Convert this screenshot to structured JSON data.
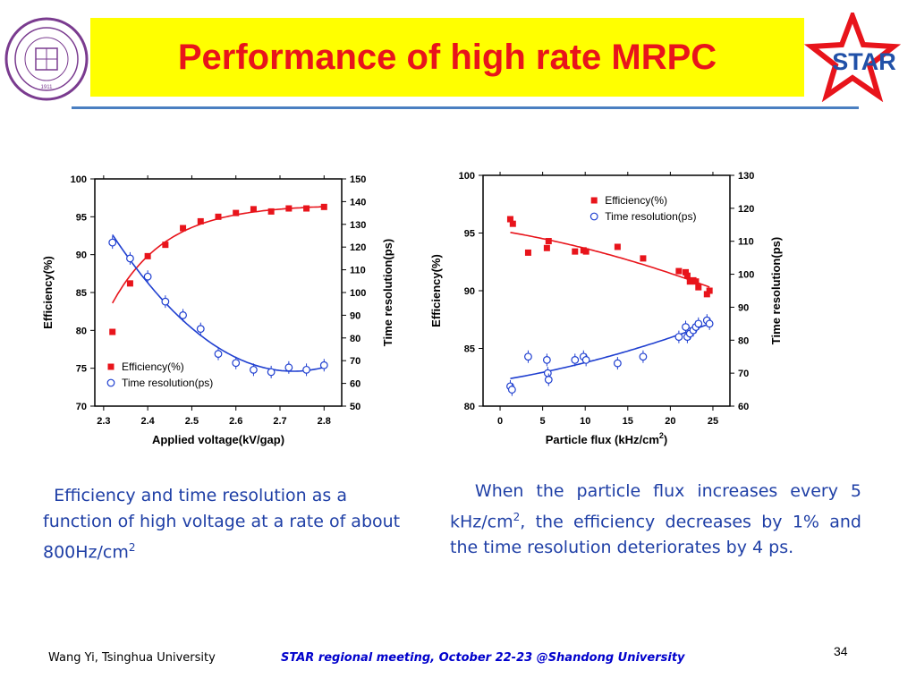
{
  "slide": {
    "title": "Performance of high rate MRPC",
    "star_logo_text": "STAR",
    "tsinghua_logo_text": "TSINGHUA UNIVERSITY",
    "tsinghua_logo_year": "1911",
    "caption_left_main": "Efficiency and time resolution as a function of high voltage at a rate of about 800Hz/cm",
    "caption_left_sup": "2",
    "caption_right_pre": "When the particle flux increases every 5 kHz/cm",
    "caption_right_sup": "2",
    "caption_right_post": ", the efficiency decreases by 1% and the time resolution deteriorates by 4 ps.",
    "footer_left": "Wang Yi, Tsinghua University",
    "footer_center": "STAR regional meeting, October 22-23 @Shandong University",
    "page_number": "34",
    "colors": {
      "title": "#e8141b",
      "title_bg": "#ffff00",
      "rule": "#4a7fc1",
      "caption": "#1f3fa6",
      "efficiency": "#e8141b",
      "resolution": "#1f3fd0"
    }
  },
  "chart_data": [
    {
      "type": "scatter",
      "xlabel": "Applied voltage(kV/gap)",
      "ylabel": "Efficiency(%)",
      "y2label": "Time resolution(ps)",
      "xlim": [
        2.28,
        2.84
      ],
      "ylim": [
        70,
        100
      ],
      "y2lim": [
        50,
        150
      ],
      "xticks": [
        "2.3",
        "2.4",
        "2.5",
        "2.6",
        "2.7",
        "2.8"
      ],
      "yticks": [
        "70",
        "75",
        "80",
        "85",
        "90",
        "95",
        "100"
      ],
      "y2ticks": [
        "50",
        "60",
        "70",
        "80",
        "90",
        "100",
        "110",
        "120",
        "130",
        "140",
        "150"
      ],
      "legend_position": "bottom-left",
      "series": [
        {
          "name": "Efficiency(%)",
          "axis": "left",
          "marker": "filled-square",
          "x": [
            2.32,
            2.36,
            2.4,
            2.44,
            2.48,
            2.52,
            2.56,
            2.6,
            2.64,
            2.68,
            2.72,
            2.76,
            2.8
          ],
          "y": [
            79.8,
            86.2,
            89.8,
            91.3,
            93.5,
            94.4,
            95.0,
            95.5,
            96.0,
            95.7,
            96.1,
            96.1,
            96.3
          ],
          "fit": true
        },
        {
          "name": "Time resolution(ps)",
          "axis": "right",
          "marker": "open-circle",
          "x": [
            2.32,
            2.36,
            2.4,
            2.44,
            2.48,
            2.52,
            2.56,
            2.6,
            2.64,
            2.68,
            2.72,
            2.76,
            2.8
          ],
          "y": [
            122,
            115,
            107,
            96,
            90,
            84,
            73,
            69,
            66,
            65,
            67,
            66,
            68
          ],
          "fit": true
        }
      ]
    },
    {
      "type": "scatter",
      "xlabel": "Particle flux (kHz/cm",
      "xlabel_sup": "2",
      "xlabel_close": ")",
      "ylabel": "Efficiency(%)",
      "y2label": "Time resolution(ps)",
      "xlim": [
        -2,
        27
      ],
      "ylim": [
        80,
        100
      ],
      "y2lim": [
        60,
        130
      ],
      "xticks": [
        "0",
        "5",
        "10",
        "15",
        "20",
        "25"
      ],
      "yticks": [
        "80",
        "85",
        "90",
        "95",
        "100"
      ],
      "y2ticks": [
        "60",
        "70",
        "80",
        "90",
        "100",
        "110",
        "120",
        "130"
      ],
      "legend_position": "top-right",
      "series": [
        {
          "name": "Efficiency(%)",
          "axis": "left",
          "marker": "filled-square",
          "x": [
            1.2,
            1.5,
            3.3,
            5.5,
            5.7,
            8.8,
            9.8,
            10.1,
            13.8,
            16.8,
            21.0,
            21.8,
            22.0,
            22.3,
            22.7,
            23.0,
            23.3,
            24.3,
            24.6
          ],
          "y": [
            96.2,
            95.8,
            93.3,
            93.7,
            94.3,
            93.4,
            93.5,
            93.4,
            93.8,
            92.8,
            91.7,
            91.6,
            91.3,
            90.8,
            90.9,
            90.8,
            90.3,
            89.7,
            90.0
          ],
          "fit": true
        },
        {
          "name": "Time resolution(ps)",
          "axis": "right",
          "marker": "open-circle",
          "x": [
            1.2,
            1.4,
            3.3,
            5.5,
            5.6,
            5.7,
            8.8,
            9.8,
            10.1,
            13.8,
            16.8,
            21.0,
            21.8,
            22.0,
            22.3,
            22.7,
            23.0,
            23.3,
            24.3,
            24.6
          ],
          "y": [
            66,
            65,
            75,
            74,
            70,
            68,
            74,
            75,
            74,
            73,
            75,
            81,
            84,
            81,
            82,
            83,
            84,
            85,
            86,
            85
          ],
          "fit": true
        }
      ]
    }
  ]
}
